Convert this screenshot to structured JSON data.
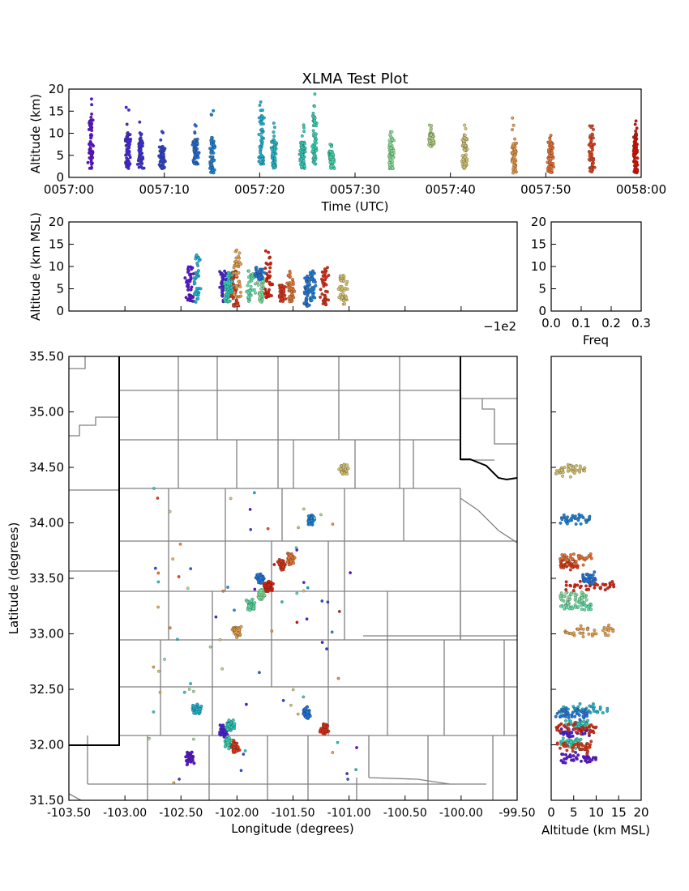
{
  "chart_data": [
    {
      "id": "time_height",
      "type": "scatter",
      "title": "XLMA Test Plot",
      "xlabel": "Time (UTC)",
      "ylabel": "Altitude (km)",
      "xticks": [
        "0057:00",
        "0057:10",
        "0057:20",
        "0057:30",
        "0057:40",
        "0057:50",
        "0058:00"
      ],
      "xlim_seconds": [
        0,
        60
      ],
      "yticks": [
        "0",
        "5",
        "10",
        "15",
        "20"
      ],
      "ylim": [
        0,
        20
      ],
      "colormap": "rainbow by time",
      "clusters": [
        {
          "t": 2.3,
          "z_lo": 2,
          "z_hi": 13,
          "z_max": 18
        },
        {
          "t": 6.2,
          "z_lo": 2,
          "z_hi": 10,
          "z_max": 16
        },
        {
          "t": 7.5,
          "z_lo": 2,
          "z_hi": 9,
          "z_max": 15
        },
        {
          "t": 9.8,
          "z_lo": 2,
          "z_hi": 7,
          "z_max": 11
        },
        {
          "t": 13.3,
          "z_lo": 3,
          "z_hi": 9,
          "z_max": 15
        },
        {
          "t": 15.0,
          "z_lo": 1,
          "z_hi": 9,
          "z_max": 16
        },
        {
          "t": 20.2,
          "z_lo": 3,
          "z_hi": 14,
          "z_max": 18
        },
        {
          "t": 21.5,
          "z_lo": 2,
          "z_hi": 9,
          "z_max": 13
        },
        {
          "t": 24.5,
          "z_lo": 2,
          "z_hi": 8,
          "z_max": 12
        },
        {
          "t": 25.7,
          "z_lo": 3,
          "z_hi": 14,
          "z_max": 19
        },
        {
          "t": 27.5,
          "z_lo": 2,
          "z_hi": 6,
          "z_max": 8
        },
        {
          "t": 33.8,
          "z_lo": 2,
          "z_hi": 9,
          "z_max": 13
        },
        {
          "t": 38.0,
          "z_lo": 7,
          "z_hi": 10,
          "z_max": 12
        },
        {
          "t": 41.5,
          "z_lo": 2,
          "z_hi": 9,
          "z_max": 12
        },
        {
          "t": 46.7,
          "z_lo": 1,
          "z_hi": 8,
          "z_max": 15
        },
        {
          "t": 50.5,
          "z_lo": 1,
          "z_hi": 8,
          "z_max": 11
        },
        {
          "t": 54.8,
          "z_lo": 1,
          "z_hi": 10,
          "z_max": 14
        },
        {
          "t": 59.4,
          "z_lo": 1,
          "z_hi": 10,
          "z_max": 13
        }
      ]
    },
    {
      "id": "lon_height",
      "type": "scatter",
      "xlabel": "",
      "ylabel": "Altitude (km MSL)",
      "x_offset_label": "−1e2",
      "yticks": [
        "0",
        "5",
        "10",
        "15",
        "20"
      ],
      "ylim": [
        0,
        20
      ]
    },
    {
      "id": "histogram",
      "type": "bar",
      "xlabel": "Freq",
      "xticks": [
        "0.0",
        "0.1",
        "0.2",
        "0.3"
      ],
      "xlim": [
        0,
        0.3
      ],
      "yticks": [
        "0",
        "5",
        "10",
        "15",
        "20"
      ],
      "ylim": [
        0,
        20
      ]
    },
    {
      "id": "plan_view",
      "type": "scatter",
      "xlabel": "Longitude (degrees)",
      "ylabel": "Latitude (degrees)",
      "xticks": [
        "-103.50",
        "-103.00",
        "-102.50",
        "-102.00",
        "-101.50",
        "-101.00",
        "-100.50",
        "-100.00",
        "-99.50"
      ],
      "xlim": [
        -103.5,
        -99.5
      ],
      "yticks": [
        "31.50",
        "32.00",
        "32.50",
        "33.00",
        "33.50",
        "34.00",
        "34.50",
        "35.00",
        "35.50"
      ],
      "ylim": [
        31.5,
        35.5
      ],
      "clusters": [
        {
          "lon": -102.36,
          "lat": 32.32,
          "t": 20.5
        },
        {
          "lon": -102.42,
          "lat": 31.88,
          "t": 3
        },
        {
          "lon": -102.12,
          "lat": 32.12,
          "t": 5
        },
        {
          "lon": -102.08,
          "lat": 32.02,
          "t": 26
        },
        {
          "lon": -102.06,
          "lat": 32.18,
          "t": 24
        },
        {
          "lon": -102.02,
          "lat": 31.98,
          "t": 56
        },
        {
          "lon": -102.0,
          "lat": 33.02,
          "t": 46
        },
        {
          "lon": -101.88,
          "lat": 33.25,
          "t": 30
        },
        {
          "lon": -101.78,
          "lat": 33.34,
          "t": 33
        },
        {
          "lon": -101.72,
          "lat": 33.43,
          "t": 58
        },
        {
          "lon": -101.6,
          "lat": 33.62,
          "t": 56
        },
        {
          "lon": -101.52,
          "lat": 33.68,
          "t": 50
        },
        {
          "lon": -101.8,
          "lat": 33.5,
          "t": 14
        },
        {
          "lon": -101.33,
          "lat": 34.03,
          "t": 15
        },
        {
          "lon": -101.05,
          "lat": 34.48,
          "t": 42
        },
        {
          "lon": -101.38,
          "lat": 32.28,
          "t": 14
        },
        {
          "lon": -101.22,
          "lat": 32.15,
          "t": 57
        }
      ]
    },
    {
      "id": "height_lat",
      "type": "scatter",
      "xlabel": "Altitude (km MSL)",
      "xticks": [
        "0",
        "5",
        "10",
        "15",
        "20"
      ],
      "xlim": [
        0,
        20
      ]
    }
  ]
}
